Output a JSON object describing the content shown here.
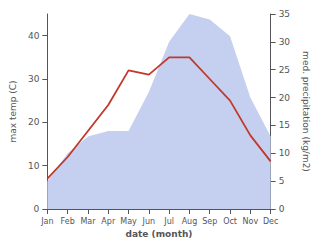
{
  "chart_data": {
    "type": "line",
    "categories": [
      "Jan",
      "Feb",
      "Mar",
      "Apr",
      "May",
      "Jun",
      "Jul",
      "Aug",
      "Sep",
      "Oct",
      "Nov",
      "Dec"
    ],
    "xlabel": "date (month)",
    "ylabel": "max temp (C)",
    "y2label": "med. precipitation (kg/m2)",
    "series": [
      {
        "type": "area",
        "axis": "y2",
        "color": "#c5d0f0",
        "values": [
          5,
          10,
          13,
          14,
          14,
          21,
          30,
          35,
          34,
          31,
          20,
          13
        ]
      },
      {
        "type": "line",
        "color": "#c0392b",
        "values": [
          7,
          12,
          18,
          24,
          32,
          31,
          35,
          35,
          30,
          25,
          17,
          11
        ]
      }
    ],
    "ylim": [
      0,
      45
    ],
    "yticks": [
      0,
      10,
      20,
      30,
      40
    ],
    "y2lim": [
      0,
      35
    ],
    "y2ticks": [
      0,
      5,
      10,
      15,
      20,
      25,
      30,
      35
    ],
    "grid": false
  }
}
